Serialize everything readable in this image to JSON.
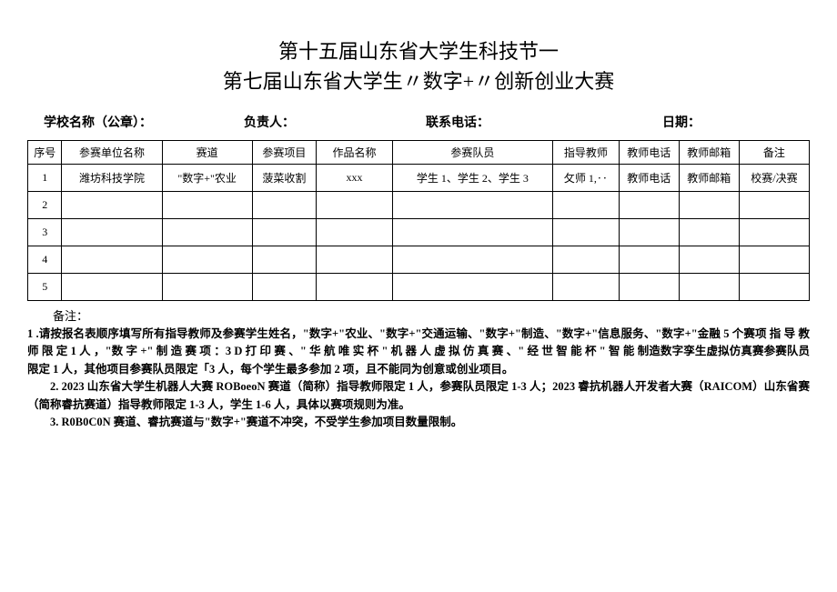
{
  "title": {
    "line1": "第十五届山东省大学生科技节一",
    "line2": "第七届山东省大学生〃数字+〃创新创业大赛"
  },
  "meta": {
    "school_label": "学校名称（公章）：",
    "leader_label": "负责人：",
    "phone_label": "联系电话：",
    "date_label": "日期："
  },
  "columns": {
    "idx": "序号",
    "unit": "参赛单位名称",
    "track": "赛道",
    "project": "参赛项目",
    "work": "作品名称",
    "team": "参赛队员",
    "teacher": "指导教师",
    "tphone": "教师电话",
    "tmail": "教师邮箱",
    "note": "备注"
  },
  "rows": [
    {
      "idx": "1",
      "unit": "潍坊科技学院",
      "track": "\"数字+\"农业",
      "project": "菠菜收割",
      "work": "xxx",
      "team": "学生 1、学生 2、学生 3",
      "teacher": "攵师 1,‥",
      "tphone": "教师电话",
      "tmail": "教师邮箱",
      "note": "校赛/决赛"
    },
    {
      "idx": "2",
      "unit": "",
      "track": "",
      "project": "",
      "work": "",
      "team": "",
      "teacher": "",
      "tphone": "",
      "tmail": "",
      "note": ""
    },
    {
      "idx": "3",
      "unit": "",
      "track": "",
      "project": "",
      "work": "",
      "team": "",
      "teacher": "",
      "tphone": "",
      "tmail": "",
      "note": ""
    },
    {
      "idx": "4",
      "unit": "",
      "track": "",
      "project": "",
      "work": "",
      "team": "",
      "teacher": "",
      "tphone": "",
      "tmail": "",
      "note": ""
    },
    {
      "idx": "5",
      "unit": "",
      "track": "",
      "project": "",
      "work": "",
      "team": "",
      "teacher": "",
      "tphone": "",
      "tmail": "",
      "note": ""
    }
  ],
  "notes": {
    "label": "备注：",
    "p1a": "1 .请按报名表顺序填写所有指导教师及参赛学生姓名，\"数字+\"农业、\"数字+\"交通运输、\"数字+\"制造、\"数字+\"信息服务、\"数字+\"金融 5 个赛项 指 导 教 师 限 定 1 人 ，\"数 字 +\" 制 造 赛 项 ：3 D 打 印 赛 、\" 华 航 唯 实 杯 \" 机 器 人 虚 拟 仿 真 赛 、\" 经 世 智 能 杯 \" 智 能 制造数字孪生虚拟仿真赛参赛队员限定 1 人，其他项目参赛队员限定「3 人，每个学生最多参加 2 项，且不能同为创意或创业项目。",
    "p2": "2.  2023 山东省大学生机器人大赛 ROBoeoN 赛道（简称）指导教师限定 1 人，参赛队员限定 1-3 人；2023 睿抗机器人开发者大赛（RAICOM）山东省赛（简称睿抗赛道）指导教师限定 1-3 人，学生 1-6 人，具体以赛项规则为准。",
    "p3": "3.     R0B0C0N 赛道、睿抗赛道与\"数字+\"赛道不冲突，不受学生参加项目数量限制。"
  },
  "style": {
    "background": "#ffffff",
    "text_color": "#000000",
    "border_color": "#000000",
    "title_fontsize": 22,
    "body_fontsize": 13,
    "table_fontsize": 12
  }
}
